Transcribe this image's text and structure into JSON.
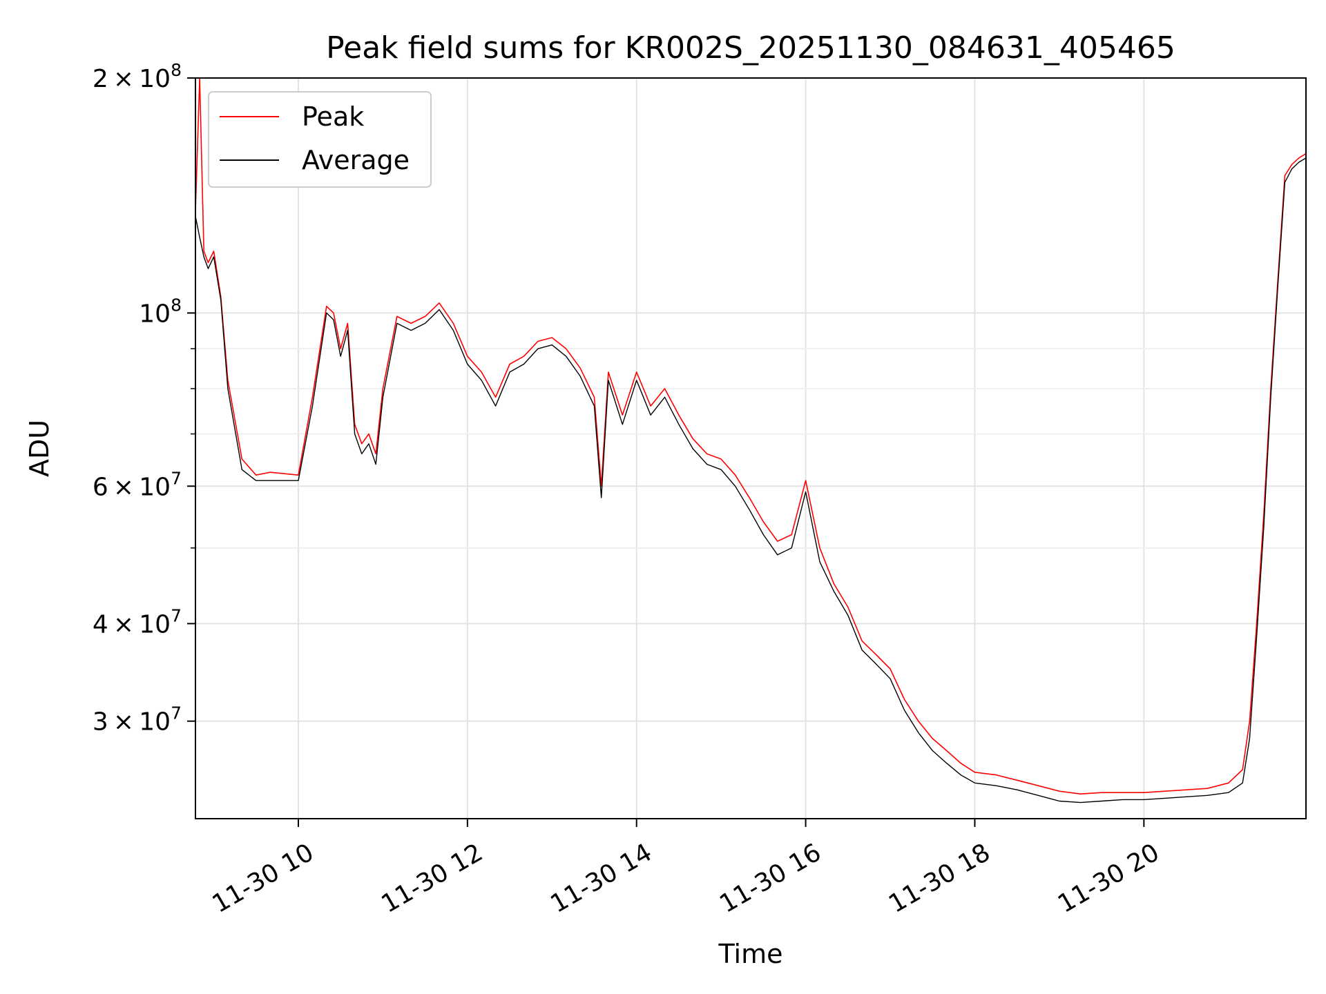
{
  "chart_data": {
    "type": "line",
    "title": "Peak field sums for KR002S_20251130_084631_405465",
    "xlabel": "Time",
    "ylabel": "ADU",
    "y_scale": "log",
    "ylim": [
      22500000,
      200000000
    ],
    "xlim": [
      "2025-11-30 08:47",
      "2025-11-30 21:55"
    ],
    "grid": true,
    "legend": {
      "placement": "top-left"
    },
    "x_ticks": [
      "11-30 10",
      "11-30 12",
      "11-30 14",
      "11-30 16",
      "11-30 18",
      "11-30 20"
    ],
    "x_tick_times": [
      "2025-11-30 10:00",
      "2025-11-30 12:00",
      "2025-11-30 14:00",
      "2025-11-30 16:00",
      "2025-11-30 18:00",
      "2025-11-30 20:00"
    ],
    "y_ticks": [
      {
        "value": 30000000,
        "mantissa": "3",
        "exponent": "7"
      },
      {
        "value": 40000000,
        "mantissa": "4",
        "exponent": "7"
      },
      {
        "value": 60000000,
        "mantissa": "6",
        "exponent": "7"
      },
      {
        "value": 100000000,
        "mantissa": "",
        "exponent": "8"
      },
      {
        "value": 200000000,
        "mantissa": "2",
        "exponent": "8"
      }
    ],
    "y_minor_ticks": [
      50000000,
      70000000,
      80000000,
      90000000
    ],
    "series": [
      {
        "name": "Peak",
        "color": "#ff0000",
        "x": [
          "2025-11-30 08:47",
          "2025-11-30 08:50",
          "2025-11-30 08:53",
          "2025-11-30 08:56",
          "2025-11-30 09:00",
          "2025-11-30 09:05",
          "2025-11-30 09:10",
          "2025-11-30 09:20",
          "2025-11-30 09:30",
          "2025-11-30 09:40",
          "2025-11-30 10:00",
          "2025-11-30 10:10",
          "2025-11-30 10:20",
          "2025-11-30 10:25",
          "2025-11-30 10:30",
          "2025-11-30 10:35",
          "2025-11-30 10:40",
          "2025-11-30 10:45",
          "2025-11-30 10:50",
          "2025-11-30 10:55",
          "2025-11-30 11:00",
          "2025-11-30 11:10",
          "2025-11-30 11:20",
          "2025-11-30 11:30",
          "2025-11-30 11:40",
          "2025-11-30 11:50",
          "2025-11-30 12:00",
          "2025-11-30 12:10",
          "2025-11-30 12:20",
          "2025-11-30 12:30",
          "2025-11-30 12:40",
          "2025-11-30 12:50",
          "2025-11-30 13:00",
          "2025-11-30 13:10",
          "2025-11-30 13:20",
          "2025-11-30 13:30",
          "2025-11-30 13:35",
          "2025-11-30 13:40",
          "2025-11-30 13:50",
          "2025-11-30 14:00",
          "2025-11-30 14:10",
          "2025-11-30 14:20",
          "2025-11-30 14:30",
          "2025-11-30 14:40",
          "2025-11-30 14:50",
          "2025-11-30 15:00",
          "2025-11-30 15:10",
          "2025-11-30 15:20",
          "2025-11-30 15:30",
          "2025-11-30 15:40",
          "2025-11-30 15:50",
          "2025-11-30 16:00",
          "2025-11-30 16:10",
          "2025-11-30 16:20",
          "2025-11-30 16:30",
          "2025-11-30 16:40",
          "2025-11-30 16:50",
          "2025-11-30 17:00",
          "2025-11-30 17:10",
          "2025-11-30 17:20",
          "2025-11-30 17:30",
          "2025-11-30 17:40",
          "2025-11-30 17:50",
          "2025-11-30 18:00",
          "2025-11-30 18:15",
          "2025-11-30 18:30",
          "2025-11-30 18:45",
          "2025-11-30 19:00",
          "2025-11-30 19:15",
          "2025-11-30 19:30",
          "2025-11-30 19:45",
          "2025-11-30 20:00",
          "2025-11-30 20:15",
          "2025-11-30 20:30",
          "2025-11-30 20:45",
          "2025-11-30 21:00",
          "2025-11-30 21:10",
          "2025-11-30 21:15",
          "2025-11-30 21:20",
          "2025-11-30 21:25",
          "2025-11-30 21:30",
          "2025-11-30 21:35",
          "2025-11-30 21:40",
          "2025-11-30 21:45",
          "2025-11-30 21:50",
          "2025-11-30 21:55"
        ],
        "y": [
          135000000,
          200000000,
          120000000,
          116000000,
          120000000,
          105000000,
          82000000,
          65000000,
          62000000,
          62500000,
          62000000,
          78000000,
          102000000,
          100000000,
          90000000,
          97000000,
          72000000,
          68000000,
          70000000,
          66000000,
          80000000,
          99000000,
          97000000,
          99000000,
          103000000,
          97000000,
          88000000,
          84000000,
          78000000,
          86000000,
          88000000,
          92000000,
          93000000,
          90000000,
          85000000,
          78000000,
          60000000,
          84000000,
          74000000,
          84000000,
          76000000,
          80000000,
          74000000,
          69000000,
          66000000,
          65000000,
          62000000,
          58000000,
          54000000,
          51000000,
          52000000,
          61000000,
          50000000,
          45000000,
          42000000,
          38000000,
          36500000,
          35000000,
          32000000,
          30000000,
          28500000,
          27500000,
          26500000,
          25800000,
          25600000,
          25200000,
          24800000,
          24400000,
          24200000,
          24300000,
          24300000,
          24300000,
          24400000,
          24500000,
          24600000,
          25000000,
          26000000,
          30000000,
          40000000,
          55000000,
          80000000,
          110000000,
          150000000,
          155000000,
          158000000,
          160000000
        ]
      },
      {
        "name": "Average",
        "color": "#000000",
        "x": [
          "2025-11-30 08:47",
          "2025-11-30 08:50",
          "2025-11-30 08:53",
          "2025-11-30 08:56",
          "2025-11-30 09:00",
          "2025-11-30 09:05",
          "2025-11-30 09:10",
          "2025-11-30 09:20",
          "2025-11-30 09:30",
          "2025-11-30 09:40",
          "2025-11-30 10:00",
          "2025-11-30 10:10",
          "2025-11-30 10:20",
          "2025-11-30 10:25",
          "2025-11-30 10:30",
          "2025-11-30 10:35",
          "2025-11-30 10:40",
          "2025-11-30 10:45",
          "2025-11-30 10:50",
          "2025-11-30 10:55",
          "2025-11-30 11:00",
          "2025-11-30 11:10",
          "2025-11-30 11:20",
          "2025-11-30 11:30",
          "2025-11-30 11:40",
          "2025-11-30 11:50",
          "2025-11-30 12:00",
          "2025-11-30 12:10",
          "2025-11-30 12:20",
          "2025-11-30 12:30",
          "2025-11-30 12:40",
          "2025-11-30 12:50",
          "2025-11-30 13:00",
          "2025-11-30 13:10",
          "2025-11-30 13:20",
          "2025-11-30 13:30",
          "2025-11-30 13:35",
          "2025-11-30 13:40",
          "2025-11-30 13:50",
          "2025-11-30 14:00",
          "2025-11-30 14:10",
          "2025-11-30 14:20",
          "2025-11-30 14:30",
          "2025-11-30 14:40",
          "2025-11-30 14:50",
          "2025-11-30 15:00",
          "2025-11-30 15:10",
          "2025-11-30 15:20",
          "2025-11-30 15:30",
          "2025-11-30 15:40",
          "2025-11-30 15:50",
          "2025-11-30 16:00",
          "2025-11-30 16:10",
          "2025-11-30 16:20",
          "2025-11-30 16:30",
          "2025-11-30 16:40",
          "2025-11-30 16:50",
          "2025-11-30 17:00",
          "2025-11-30 17:10",
          "2025-11-30 17:20",
          "2025-11-30 17:30",
          "2025-11-30 17:40",
          "2025-11-30 17:50",
          "2025-11-30 18:00",
          "2025-11-30 18:15",
          "2025-11-30 18:30",
          "2025-11-30 18:45",
          "2025-11-30 19:00",
          "2025-11-30 19:15",
          "2025-11-30 19:30",
          "2025-11-30 19:45",
          "2025-11-30 20:00",
          "2025-11-30 20:15",
          "2025-11-30 20:30",
          "2025-11-30 20:45",
          "2025-11-30 21:00",
          "2025-11-30 21:10",
          "2025-11-30 21:15",
          "2025-11-30 21:20",
          "2025-11-30 21:25",
          "2025-11-30 21:30",
          "2025-11-30 21:35",
          "2025-11-30 21:40",
          "2025-11-30 21:45",
          "2025-11-30 21:50",
          "2025-11-30 21:55"
        ],
        "y": [
          133000000,
          125000000,
          118000000,
          114000000,
          118000000,
          104000000,
          80000000,
          63000000,
          61000000,
          61000000,
          61000000,
          76000000,
          100000000,
          98000000,
          88000000,
          95000000,
          70000000,
          66000000,
          68000000,
          64000000,
          78000000,
          97000000,
          95000000,
          97000000,
          101000000,
          95000000,
          86000000,
          82000000,
          76000000,
          84000000,
          86000000,
          90000000,
          91000000,
          88000000,
          83000000,
          76000000,
          58000000,
          82000000,
          72000000,
          82000000,
          74000000,
          78000000,
          72000000,
          67000000,
          64000000,
          63000000,
          60000000,
          56000000,
          52000000,
          49000000,
          50000000,
          59000000,
          48000000,
          44000000,
          41000000,
          37000000,
          35500000,
          34000000,
          31000000,
          29000000,
          27500000,
          26500000,
          25600000,
          25000000,
          24800000,
          24500000,
          24100000,
          23700000,
          23600000,
          23700000,
          23800000,
          23800000,
          23900000,
          24000000,
          24100000,
          24300000,
          25000000,
          28500000,
          38500000,
          53000000,
          78000000,
          108000000,
          147000000,
          153000000,
          156000000,
          158000000
        ]
      }
    ]
  }
}
